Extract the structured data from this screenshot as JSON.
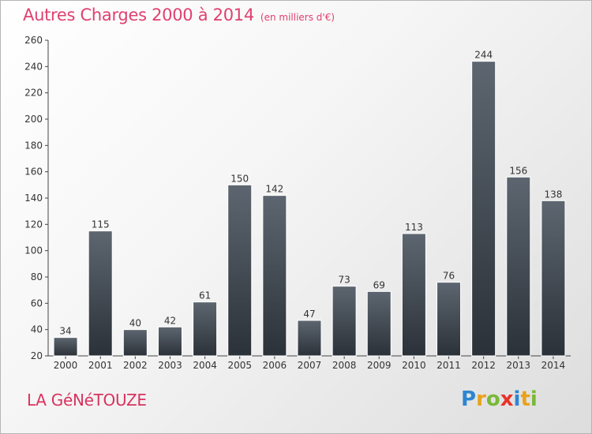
{
  "title": "Autres Charges 2000 à 2014",
  "unit_note": "(en milliers d'€)",
  "commune": "LA GéNéTOUZE",
  "logo": {
    "letters": [
      "P",
      "r",
      "o",
      "x",
      "i",
      "t",
      "i"
    ],
    "colors": [
      "#2e86d1",
      "#e8a21b",
      "#7ab839",
      "#e8332a",
      "#2e86d1",
      "#e8a21b",
      "#7ab839"
    ]
  },
  "colors": {
    "title": "#e04070",
    "bar_top": "#5d6670",
    "bar_bottom": "#2b3138"
  },
  "chart_data": {
    "type": "bar",
    "title": "Autres Charges 2000 à 2014",
    "xlabel": "",
    "ylabel": "",
    "categories": [
      "2000",
      "2001",
      "2002",
      "2003",
      "2004",
      "2005",
      "2006",
      "2007",
      "2008",
      "2009",
      "2010",
      "2011",
      "2012",
      "2013",
      "2014"
    ],
    "values": [
      34,
      115,
      40,
      42,
      61,
      150,
      142,
      47,
      73,
      69,
      113,
      76,
      244,
      156,
      138
    ],
    "ylim": [
      20,
      260
    ],
    "yticks": [
      20,
      40,
      60,
      80,
      100,
      120,
      140,
      160,
      180,
      200,
      220,
      240,
      260
    ],
    "grid": false,
    "data_labels": true
  }
}
